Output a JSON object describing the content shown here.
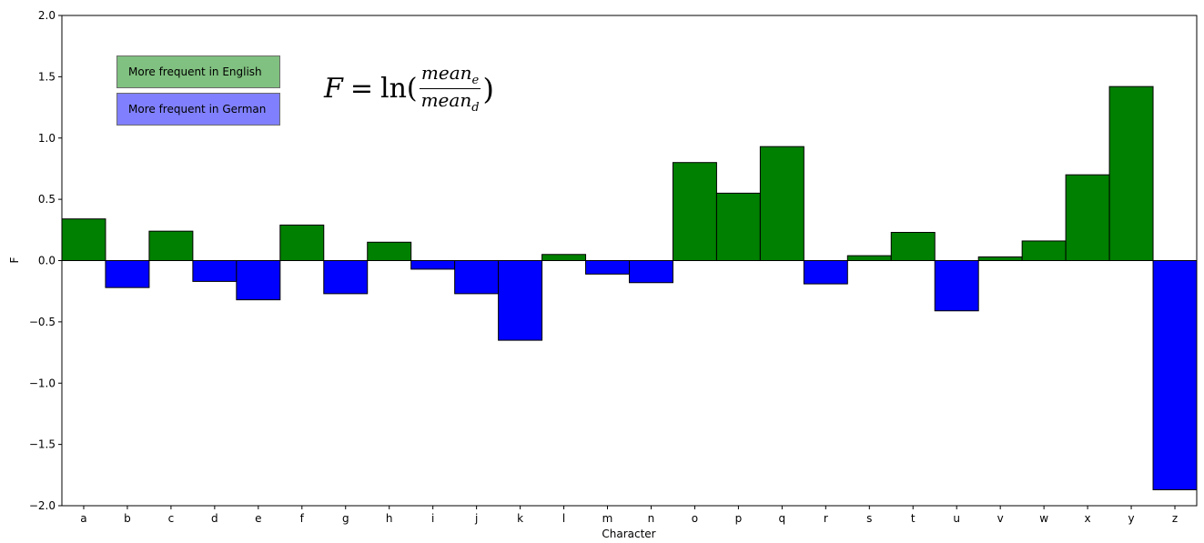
{
  "chart_data": {
    "type": "bar",
    "categories": [
      "a",
      "b",
      "c",
      "d",
      "e",
      "f",
      "g",
      "h",
      "i",
      "j",
      "k",
      "l",
      "m",
      "n",
      "o",
      "p",
      "q",
      "r",
      "s",
      "t",
      "u",
      "v",
      "w",
      "x",
      "y",
      "z"
    ],
    "values": [
      0.34,
      -0.22,
      0.24,
      -0.17,
      -0.32,
      0.29,
      -0.27,
      0.15,
      -0.07,
      -0.27,
      -0.65,
      0.05,
      -0.11,
      -0.18,
      0.8,
      0.55,
      0.93,
      -0.19,
      0.04,
      0.23,
      -0.41,
      0.03,
      0.16,
      0.7,
      1.42,
      -1.87
    ],
    "xlabel": "Character",
    "ylabel": "F",
    "ylim": [
      -2.0,
      2.0
    ],
    "yticks": [
      "2.0",
      "1.5",
      "1.0",
      "0.5",
      "0.0",
      "−0.5",
      "−1.0",
      "−1.5",
      "−2.0"
    ],
    "ytick_values": [
      2.0,
      1.5,
      1.0,
      0.5,
      0.0,
      -0.5,
      -1.0,
      -1.5,
      -2.0
    ],
    "grid": false,
    "colors": {
      "positive": "#008000",
      "negative": "#0000ff",
      "legend_positive": "#80c080",
      "legend_negative": "#8080ff"
    },
    "legend": {
      "placement": "top-left",
      "positive_label": "More frequent in English",
      "negative_label": "More frequent in German"
    },
    "annotation": {
      "lhs": "F",
      "equals": "=",
      "func": "ln(",
      "numerator": "mean",
      "numerator_sub": "e",
      "denominator": "mean",
      "denominator_sub": "d",
      "close": ")"
    }
  }
}
